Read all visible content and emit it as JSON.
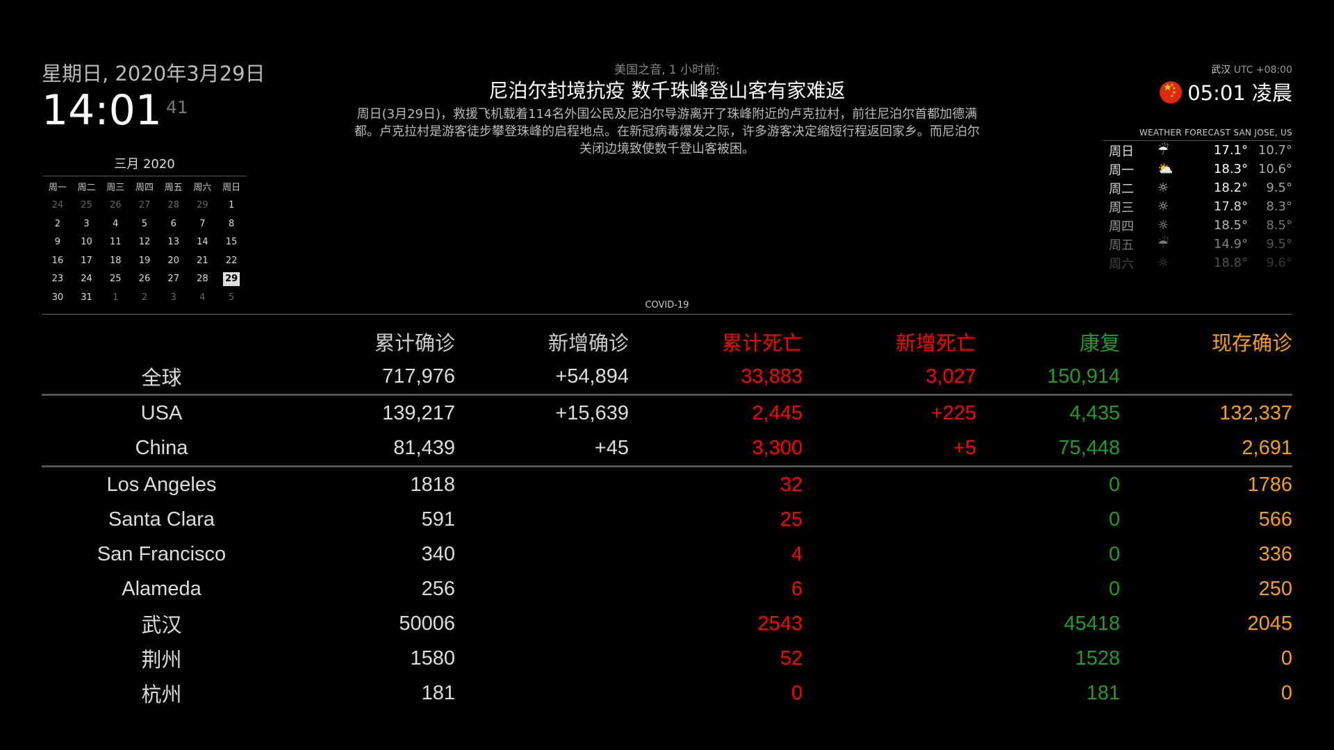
{
  "clock": {
    "date": "星期日, 2020年3月29日",
    "time": "14:01",
    "seconds": "41"
  },
  "calendar": {
    "title": "三月 2020",
    "weekdays": [
      "周一",
      "周二",
      "周三",
      "周四",
      "周五",
      "周六",
      "周日"
    ],
    "days": [
      {
        "d": "24",
        "other": true
      },
      {
        "d": "25",
        "other": true
      },
      {
        "d": "26",
        "other": true
      },
      {
        "d": "27",
        "other": true
      },
      {
        "d": "28",
        "other": true
      },
      {
        "d": "29",
        "other": true
      },
      {
        "d": "1"
      },
      {
        "d": "2"
      },
      {
        "d": "3"
      },
      {
        "d": "4"
      },
      {
        "d": "5"
      },
      {
        "d": "6"
      },
      {
        "d": "7"
      },
      {
        "d": "8"
      },
      {
        "d": "9"
      },
      {
        "d": "10"
      },
      {
        "d": "11"
      },
      {
        "d": "12"
      },
      {
        "d": "13"
      },
      {
        "d": "14"
      },
      {
        "d": "15"
      },
      {
        "d": "16"
      },
      {
        "d": "17"
      },
      {
        "d": "18"
      },
      {
        "d": "19"
      },
      {
        "d": "20"
      },
      {
        "d": "21"
      },
      {
        "d": "22"
      },
      {
        "d": "23"
      },
      {
        "d": "24"
      },
      {
        "d": "25"
      },
      {
        "d": "26"
      },
      {
        "d": "27"
      },
      {
        "d": "28"
      },
      {
        "d": "29",
        "today": true
      },
      {
        "d": "30"
      },
      {
        "d": "31"
      },
      {
        "d": "1",
        "other": true
      },
      {
        "d": "2",
        "other": true
      },
      {
        "d": "3",
        "other": true
      },
      {
        "d": "4",
        "other": true
      },
      {
        "d": "5",
        "other": true
      }
    ]
  },
  "news": {
    "source": "美国之音, 1 小时前:",
    "headline": "尼泊尔封境抗疫 数千珠峰登山客有家难返",
    "description": "周日(3月29日)，救援飞机载着114名外国公民及尼泊尔导游离开了珠峰附近的卢克拉村，前往尼泊尔首都加德满都。卢克拉村是游客徒步攀登珠峰的启程地点。在新冠病毒爆发之际，许多游客决定缩短行程返回家乡。而尼泊尔关闭边境致使数千登山客被困。"
  },
  "worldclock": {
    "city": "武汉",
    "utc": "UTC +08:00",
    "time": "05:01 凌晨",
    "flag_icon": "china-flag-icon"
  },
  "weather": {
    "title": "WEATHER FORECAST SAN JOSE, US",
    "days": [
      {
        "day": "周日",
        "icon": "rain-icon",
        "glyph": "☔",
        "high": "17.1°",
        "low": "10.7°",
        "opacity": 1.0
      },
      {
        "day": "周一",
        "icon": "partly-cloudy-icon",
        "glyph": "⛅",
        "high": "18.3°",
        "low": "10.6°",
        "opacity": 1.0
      },
      {
        "day": "周二",
        "icon": "sun-icon",
        "glyph": "☼",
        "high": "18.2°",
        "low": "9.5°",
        "opacity": 0.95
      },
      {
        "day": "周三",
        "icon": "sun-icon",
        "glyph": "☼",
        "high": "17.8°",
        "low": "8.3°",
        "opacity": 0.85
      },
      {
        "day": "周四",
        "icon": "sun-icon",
        "glyph": "☼",
        "high": "18.5°",
        "low": "8.5°",
        "opacity": 0.7
      },
      {
        "day": "周五",
        "icon": "rain-icon",
        "glyph": "☔",
        "high": "14.9°",
        "low": "9.5°",
        "opacity": 0.5
      },
      {
        "day": "周六",
        "icon": "sun-icon",
        "glyph": "☼",
        "high": "18.8°",
        "low": "9.6°",
        "opacity": 0.3
      }
    ]
  },
  "covid": {
    "label": "COVID-19",
    "headers": {
      "total": "累计确诊",
      "new": "新增确诊",
      "deaths": "累计死亡",
      "new_deaths": "新增死亡",
      "recovered": "康复",
      "active": "现存确诊"
    },
    "global": {
      "name": "全球",
      "total": "717,976",
      "new": "+54,894",
      "deaths": "33,883",
      "new_deaths": "3,027",
      "recovered": "150,914",
      "active": ""
    },
    "countries": [
      {
        "name": "USA",
        "total": "139,217",
        "new": "+15,639",
        "deaths": "2,445",
        "new_deaths": "+225",
        "recovered": "4,435",
        "active": "132,337"
      },
      {
        "name": "China",
        "total": "81,439",
        "new": "+45",
        "deaths": "3,300",
        "new_deaths": "+5",
        "recovered": "75,448",
        "active": "2,691"
      }
    ],
    "cities": [
      {
        "name": "Los Angeles",
        "total": "1818",
        "new": "",
        "deaths": "32",
        "new_deaths": "",
        "recovered": "0",
        "active": "1786"
      },
      {
        "name": "Santa Clara",
        "total": "591",
        "new": "",
        "deaths": "25",
        "new_deaths": "",
        "recovered": "0",
        "active": "566"
      },
      {
        "name": "San Francisco",
        "total": "340",
        "new": "",
        "deaths": "4",
        "new_deaths": "",
        "recovered": "0",
        "active": "336"
      },
      {
        "name": "Alameda",
        "total": "256",
        "new": "",
        "deaths": "6",
        "new_deaths": "",
        "recovered": "0",
        "active": "250"
      },
      {
        "name": "武汉",
        "total": "50006",
        "new": "",
        "deaths": "2543",
        "new_deaths": "",
        "recovered": "45418",
        "active": "2045"
      },
      {
        "name": "荆州",
        "total": "1580",
        "new": "",
        "deaths": "52",
        "new_deaths": "",
        "recovered": "1528",
        "active": "0"
      },
      {
        "name": "杭州",
        "total": "181",
        "new": "",
        "deaths": "0",
        "new_deaths": "",
        "recovered": "181",
        "active": "0"
      }
    ]
  }
}
